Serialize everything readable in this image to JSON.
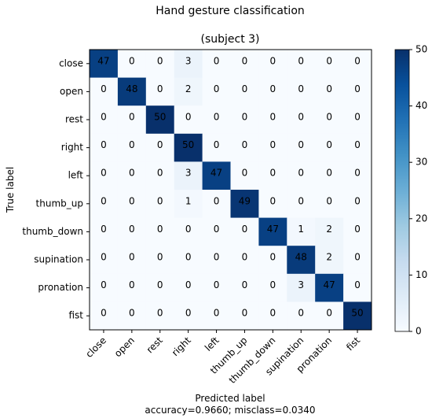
{
  "chart_data": {
    "type": "heatmap",
    "title": "Hand gesture classification",
    "subtitle": "(subject 3)",
    "xlabel": "Predicted label",
    "xlabel_note": "accuracy=0.9660; misclass=0.0340",
    "ylabel": "True label",
    "x_categories": [
      "close",
      "open",
      "rest",
      "right",
      "left",
      "thumb_up",
      "thumb_down",
      "supination",
      "pronation",
      "fist"
    ],
    "y_categories": [
      "close",
      "open",
      "rest",
      "right",
      "left",
      "thumb_up",
      "thumb_down",
      "supination",
      "pronation",
      "fist"
    ],
    "values": [
      [
        47,
        0,
        0,
        3,
        0,
        0,
        0,
        0,
        0,
        0
      ],
      [
        0,
        48,
        0,
        2,
        0,
        0,
        0,
        0,
        0,
        0
      ],
      [
        0,
        0,
        50,
        0,
        0,
        0,
        0,
        0,
        0,
        0
      ],
      [
        0,
        0,
        0,
        50,
        0,
        0,
        0,
        0,
        0,
        0
      ],
      [
        0,
        0,
        0,
        3,
        47,
        0,
        0,
        0,
        0,
        0
      ],
      [
        0,
        0,
        0,
        1,
        0,
        49,
        0,
        0,
        0,
        0
      ],
      [
        0,
        0,
        0,
        0,
        0,
        0,
        47,
        1,
        2,
        0
      ],
      [
        0,
        0,
        0,
        0,
        0,
        0,
        0,
        48,
        2,
        0
      ],
      [
        0,
        0,
        0,
        0,
        0,
        0,
        0,
        3,
        47,
        0
      ],
      [
        0,
        0,
        0,
        0,
        0,
        0,
        0,
        0,
        0,
        50
      ]
    ],
    "colorbar": {
      "range": [
        0,
        50
      ],
      "ticks": [
        "0",
        "10",
        "20",
        "30",
        "40",
        "50"
      ]
    },
    "colormap": "Blues",
    "colors": {
      "low": "#f7fbff",
      "high": "#08306b"
    }
  }
}
